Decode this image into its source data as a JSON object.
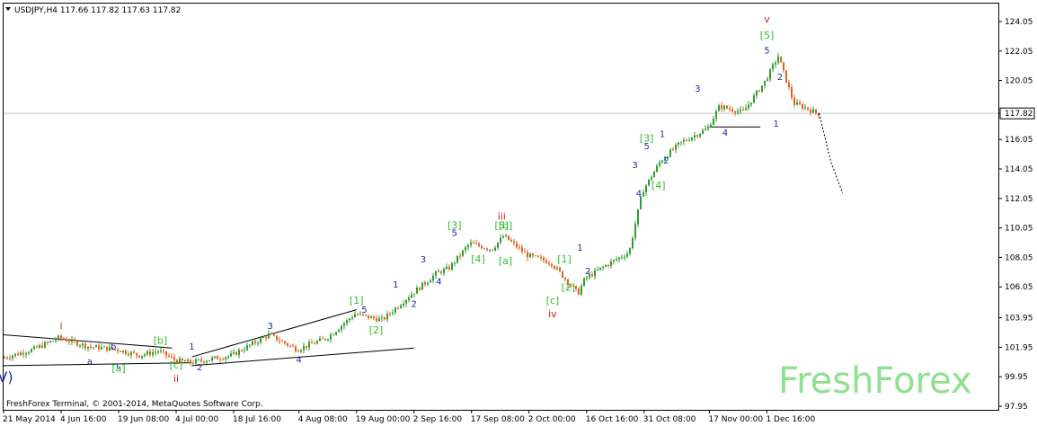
{
  "header": {
    "collapse_icon": "triangle-down-icon",
    "symbol_line": "USDJPY,H4  117.66 117.82 117.63 117.82"
  },
  "footer": {
    "copyright": "FreshForex Terminal, © 2001-2014, MetaQuotes Software Corp."
  },
  "watermark": "FreshForex",
  "colors": {
    "grid": "#c0c0c0",
    "candle_up": "#2f9e2f",
    "candle_down": "#e0651c",
    "wave_blue": "#1b2a9e",
    "wave_green": "#2fbf2f",
    "wave_red": "#d21e1e",
    "trendline": "#000000",
    "watermark": "#8fe08f",
    "price_label_bg": "#ffffff"
  },
  "chart_data": {
    "type": "candlestick",
    "symbol": "USDJPY",
    "timeframe": "H4",
    "ylim": [
      97.95,
      124.05
    ],
    "y_ticks": [
      {
        "label": "124.05",
        "value": 124.05
      },
      {
        "label": "122.05",
        "value": 122.05
      },
      {
        "label": "120.05",
        "value": 120.05
      },
      {
        "label": "117.82",
        "value": 117.82,
        "current": true
      },
      {
        "label": "116.05",
        "value": 116.05
      },
      {
        "label": "114.05",
        "value": 114.05
      },
      {
        "label": "112.05",
        "value": 112.05
      },
      {
        "label": "110.05",
        "value": 110.05
      },
      {
        "label": "108.05",
        "value": 108.05
      },
      {
        "label": "106.05",
        "value": 106.05
      },
      {
        "label": "103.95",
        "value": 103.95
      },
      {
        "label": "101.95",
        "value": 101.95
      },
      {
        "label": "99.95",
        "value": 99.95
      },
      {
        "label": "97.95",
        "value": 97.95
      }
    ],
    "x_ticks": [
      "21 May 2014",
      "4 Jun 16:00",
      "19 Jun 08:00",
      "4 Jul 00:00",
      "18 Jul 16:00",
      "4 Aug 08:00",
      "19 Aug 00:00",
      "2 Sep 16:00",
      "17 Sep 08:00",
      "2 Oct 00:00",
      "16 Oct 16:00",
      "31 Oct 08:00",
      "17 Nov 00:00",
      "1 Dec 16:00"
    ],
    "price_path": [
      {
        "t": "21 May 2014",
        "v": 101.2
      },
      {
        "t": "29 May",
        "v": 101.8
      },
      {
        "t": "4 Jun 16:00",
        "v": 102.6
      },
      {
        "t": "12 Jun",
        "v": 102.0
      },
      {
        "t": "19 Jun 08:00",
        "v": 101.8
      },
      {
        "t": "25 Jun",
        "v": 101.4
      },
      {
        "t": "30 Jun",
        "v": 101.7
      },
      {
        "t": "4 Jul 00:00",
        "v": 101.1
      },
      {
        "t": "8 Jul",
        "v": 100.9
      },
      {
        "t": "18 Jul 16:00",
        "v": 101.4
      },
      {
        "t": "28 Jul",
        "v": 102.8
      },
      {
        "t": "4 Aug 08:00",
        "v": 101.8
      },
      {
        "t": "12 Aug",
        "v": 102.6
      },
      {
        "t": "19 Aug 00:00",
        "v": 104.2
      },
      {
        "t": "26 Aug",
        "v": 103.8
      },
      {
        "t": "2 Sep 16:00",
        "v": 105.6
      },
      {
        "t": "9 Sep",
        "v": 107.0
      },
      {
        "t": "12 Sep",
        "v": 107.3
      },
      {
        "t": "17 Sep 08:00",
        "v": 109.0
      },
      {
        "t": "23 Sep",
        "v": 108.6
      },
      {
        "t": "26 Sep",
        "v": 109.5
      },
      {
        "t": "2 Oct 00:00",
        "v": 108.2
      },
      {
        "t": "8 Oct",
        "v": 107.7
      },
      {
        "t": "15 Oct",
        "v": 105.6
      },
      {
        "t": "16 Oct 16:00",
        "v": 106.6
      },
      {
        "t": "22 Oct",
        "v": 107.5
      },
      {
        "t": "28 Oct",
        "v": 108.4
      },
      {
        "t": "31 Oct 08:00",
        "v": 112.5
      },
      {
        "t": "5 Nov",
        "v": 114.6
      },
      {
        "t": "10 Nov",
        "v": 115.8
      },
      {
        "t": "17 Nov 00:00",
        "v": 116.8
      },
      {
        "t": "20 Nov",
        "v": 118.3
      },
      {
        "t": "26 Nov",
        "v": 117.9
      },
      {
        "t": "1 Dec 16:00",
        "v": 120.0
      },
      {
        "t": "5 Dec",
        "v": 121.7
      },
      {
        "t": "9 Dec",
        "v": 118.5
      },
      {
        "t": "12 Dec",
        "v": 118.2
      },
      {
        "t": "15 Dec",
        "v": 117.82
      }
    ],
    "projection": [
      {
        "t": "15 Dec",
        "v": 117.82
      },
      {
        "t": "18 Dec",
        "v": 114.5
      },
      {
        "t": "21 Dec",
        "v": 112.4
      }
    ],
    "trendlines": [
      {
        "from": {
          "t": "21 May 2014",
          "v": 102.8
        },
        "to": {
          "t": "3 Jul",
          "v": 101.9
        }
      },
      {
        "from": {
          "t": "21 May 2014",
          "v": 100.7
        },
        "to": {
          "t": "8 Jul",
          "v": 100.9
        }
      },
      {
        "from": {
          "t": "8 Jul",
          "v": 101.3
        },
        "to": {
          "t": "19 Aug 00:00",
          "v": 104.5
        }
      },
      {
        "from": {
          "t": "8 Jul",
          "v": 100.7
        },
        "to": {
          "t": "2 Sep 16:00",
          "v": 101.9
        }
      },
      {
        "from": {
          "t": "17 Nov 00:00",
          "v": 116.9
        },
        "to": {
          "t": "30 Nov",
          "v": 116.9
        }
      }
    ],
    "wave_labels": [
      {
        "text": "V)",
        "color": "blue",
        "t": "21 May 2014",
        "v": 99.6,
        "size": "large"
      },
      {
        "text": "i",
        "color": "red",
        "t": "4 Jun 16:00",
        "v": 103.2
      },
      {
        "text": "a",
        "color": "blue",
        "t": "12 Jun",
        "v": 100.8
      },
      {
        "text": "b",
        "color": "blue",
        "t": "18 Jun",
        "v": 101.8
      },
      {
        "text": "c",
        "color": "blue",
        "t": "19 Jun 08:00",
        "v": 100.5
      },
      {
        "text": "[a]",
        "color": "green",
        "t": "19 Jun 08:00",
        "v": 100.3
      },
      {
        "text": "[b]",
        "color": "green",
        "t": "30 Jun",
        "v": 102.2
      },
      {
        "text": "[c]",
        "color": "green",
        "t": "4 Jul 00:00",
        "v": 100.5
      },
      {
        "text": "ii",
        "color": "red",
        "t": "4 Jul 00:00",
        "v": 99.6
      },
      {
        "text": "1",
        "color": "blue",
        "t": "8 Jul",
        "v": 101.8
      },
      {
        "text": "2",
        "color": "blue",
        "t": "10 Jul",
        "v": 100.4
      },
      {
        "text": "3",
        "color": "blue",
        "t": "28 Jul",
        "v": 103.2
      },
      {
        "text": "4",
        "color": "blue",
        "t": "4 Aug 08:00",
        "v": 100.9
      },
      {
        "text": "[1]",
        "color": "green",
        "t": "19 Aug 00:00",
        "v": 104.9
      },
      {
        "text": "5",
        "color": "blue",
        "t": "21 Aug",
        "v": 104.3
      },
      {
        "text": "[2]",
        "color": "green",
        "t": "24 Aug",
        "v": 102.9
      },
      {
        "text": "1",
        "color": "blue",
        "t": "29 Aug",
        "v": 106.0
      },
      {
        "text": "2",
        "color": "blue",
        "t": "2 Sep 16:00",
        "v": 104.7
      },
      {
        "text": "3",
        "color": "blue",
        "t": "5 Sep",
        "v": 107.7
      },
      {
        "text": "4",
        "color": "blue",
        "t": "9 Sep",
        "v": 106.2
      },
      {
        "text": "[3]",
        "color": "green",
        "t": "13 Sep",
        "v": 110.0
      },
      {
        "text": "5",
        "color": "blue",
        "t": "13 Sep",
        "v": 109.5
      },
      {
        "text": "[4]",
        "color": "green",
        "t": "19 Sep",
        "v": 107.7
      },
      {
        "text": "iii",
        "color": "red",
        "t": "25 Sep",
        "v": 110.6
      },
      {
        "text": "[5]",
        "color": "green",
        "t": "25 Sep",
        "v": 110.0
      },
      {
        "text": "[b]",
        "color": "green",
        "t": "26 Sep",
        "v": 110.0
      },
      {
        "text": "[a]",
        "color": "green",
        "t": "26 Sep",
        "v": 107.6
      },
      {
        "text": "[1]",
        "color": "green",
        "t": "11 Oct",
        "v": 107.7
      },
      {
        "text": "[2]",
        "color": "green",
        "t": "12 Oct",
        "v": 105.8
      },
      {
        "text": "[c]",
        "color": "green",
        "t": "8 Oct",
        "v": 104.9
      },
      {
        "text": "iv",
        "color": "red",
        "t": "8 Oct",
        "v": 104.0
      },
      {
        "text": "1",
        "color": "blue",
        "t": "15 Oct",
        "v": 108.5
      },
      {
        "text": "2",
        "color": "blue",
        "t": "17 Oct",
        "v": 106.9
      },
      {
        "text": "3",
        "color": "blue",
        "t": "29 Oct",
        "v": 114.1
      },
      {
        "text": "4",
        "color": "blue",
        "t": "30 Oct",
        "v": 112.2
      },
      {
        "text": "5",
        "color": "blue",
        "t": "1 Nov",
        "v": 115.4
      },
      {
        "text": "[3]",
        "color": "green",
        "t": "1 Nov",
        "v": 115.9
      },
      {
        "text": "[4]",
        "color": "green",
        "t": "4 Nov",
        "v": 112.7
      },
      {
        "text": "1",
        "color": "blue",
        "t": "5 Nov",
        "v": 116.2
      },
      {
        "text": "2",
        "color": "blue",
        "t": "6 Nov",
        "v": 114.4
      },
      {
        "text": "3",
        "color": "blue",
        "t": "14 Nov",
        "v": 119.3
      },
      {
        "text": "4",
        "color": "blue",
        "t": "21 Nov",
        "v": 116.3
      },
      {
        "text": "v",
        "color": "red",
        "t": "1 Dec 16:00",
        "v": 124.0
      },
      {
        "text": "[5]",
        "color": "green",
        "t": "1 Dec 16:00",
        "v": 122.9
      },
      {
        "text": "5",
        "color": "blue",
        "t": "1 Dec 16:00",
        "v": 121.9
      },
      {
        "text": "2",
        "color": "blue",
        "t": "5 Dec",
        "v": 120.1
      },
      {
        "text": "1",
        "color": "blue",
        "t": "4 Dec",
        "v": 116.9
      }
    ],
    "grid": "current price line only",
    "price_axis": "right"
  }
}
